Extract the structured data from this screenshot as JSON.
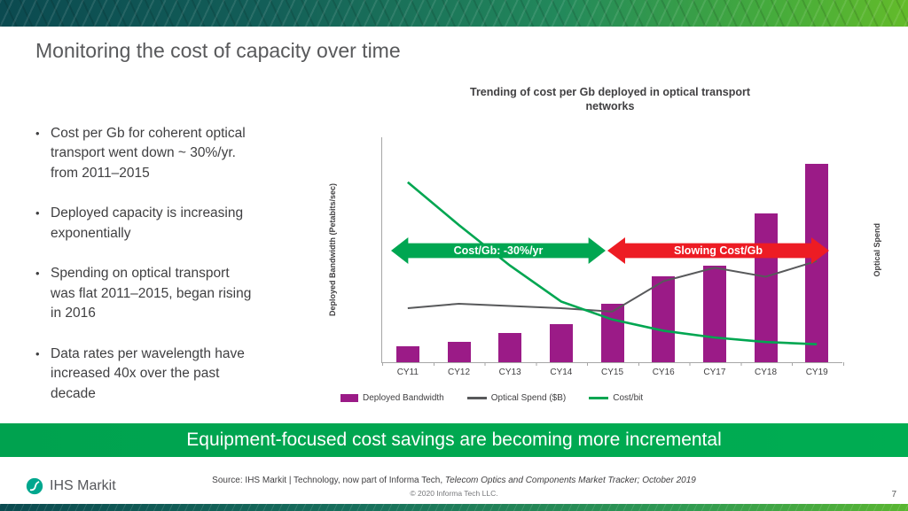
{
  "slide": {
    "title": "Monitoring the cost of capacity over time",
    "banner": "Equipment-focused cost savings are becoming more incremental",
    "page_number": "7"
  },
  "bullets": [
    "Cost per Gb for coherent optical transport went down ~ 30%/yr. from 2011–2015",
    "Deployed capacity is increasing exponentially",
    "Spending on optical transport was flat 2011–2015, began rising in 2016",
    "Data rates per wavelength have increased 40x over the past decade"
  ],
  "chart_data": {
    "type": "bar",
    "title": "Trending of cost per Gb deployed in optical transport networks",
    "categories": [
      "CY11",
      "CY12",
      "CY13",
      "CY14",
      "CY15",
      "CY16",
      "CY17",
      "CY18",
      "CY19"
    ],
    "ylabel_left": "Deployed Bandwidth (Petabits/sec)",
    "ylabel_right": "Optical Spend",
    "axis_note": "no numeric tick labels shown on either value axis; values estimated as percent of plot height",
    "grid": false,
    "legend_position": "bottom",
    "series": [
      {
        "name": "Deployed Bandwidth",
        "type": "bar",
        "color": "#9b1b87",
        "axis": "left",
        "values": [
          7,
          9,
          13,
          17,
          26,
          38,
          43,
          66,
          88
        ]
      },
      {
        "name": "Optical Spend ($B)",
        "type": "line",
        "color": "#58595b",
        "axis": "right",
        "values": [
          24,
          26,
          25,
          24,
          22.5,
          36,
          42,
          38,
          45
        ]
      },
      {
        "name": "Cost/bit",
        "type": "line",
        "color": "#00a651",
        "axis": "right",
        "values": [
          80,
          61,
          43,
          27,
          19,
          14,
          11,
          9,
          8
        ]
      }
    ],
    "annotations": [
      {
        "label": "Cost/Gb: -30%/yr",
        "color": "#00a651",
        "span": "CY11–CY15"
      },
      {
        "label": "Slowing Cost/Gb",
        "color": "#ed1c24",
        "span": "CY15–CY19"
      }
    ]
  },
  "footer": {
    "logo_text": "IHS Markit",
    "source_prefix": "Source: IHS Markit | Technology, now part of Informa Tech, ",
    "source_italic": "Telecom Optics and Components Market Tracker; October 2019",
    "copyright": "© 2020 Informa Tech LLC."
  }
}
